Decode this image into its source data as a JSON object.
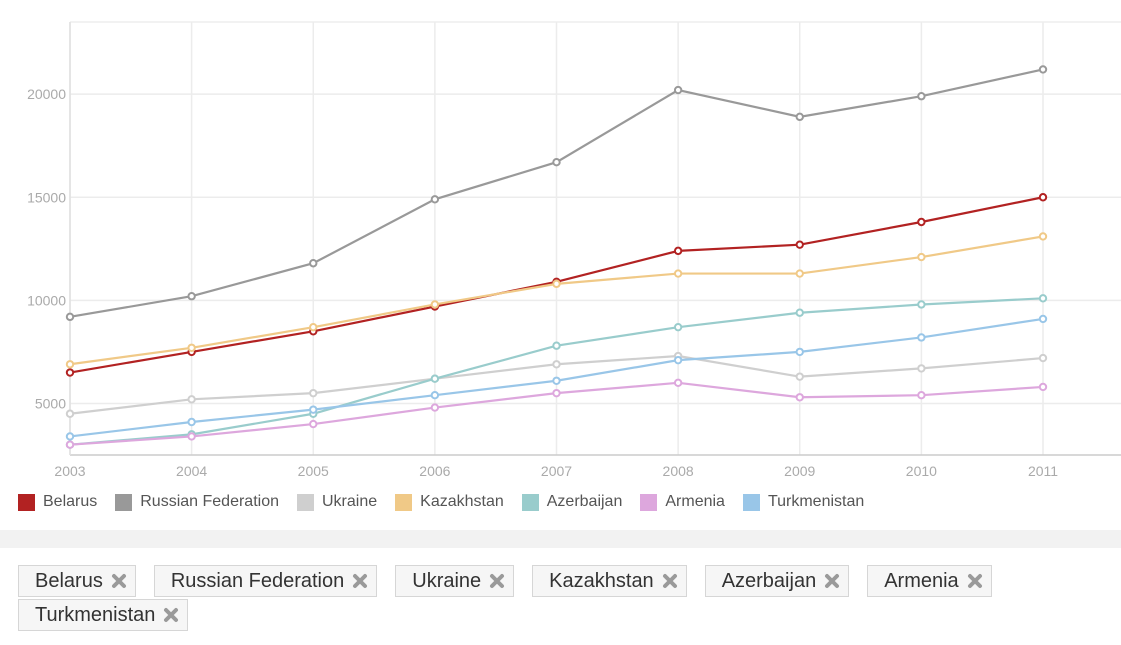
{
  "chart_data": {
    "type": "line",
    "x": [
      "2003",
      "2004",
      "2005",
      "2006",
      "2007",
      "2008",
      "2009",
      "2010",
      "2011"
    ],
    "ylim": [
      2500,
      23500
    ],
    "yticks": [
      "5000",
      "10000",
      "15000",
      "20000"
    ],
    "grid": true,
    "legend_position": "bottom-left",
    "series": [
      {
        "name": "Belarus",
        "color": "#b22222",
        "values": [
          6500,
          7500,
          8500,
          9700,
          10900,
          12400,
          12700,
          13800,
          15000
        ]
      },
      {
        "name": "Russian Federation",
        "color": "#999999",
        "values": [
          9200,
          10200,
          11800,
          14900,
          16700,
          20200,
          18900,
          19900,
          21200
        ]
      },
      {
        "name": "Ukraine",
        "color": "#cfcfcf",
        "values": [
          4500,
          5200,
          5500,
          6200,
          6900,
          7300,
          6300,
          6700,
          7200
        ]
      },
      {
        "name": "Kazakhstan",
        "color": "#f0c987",
        "values": [
          6900,
          7700,
          8700,
          9800,
          10800,
          11300,
          11300,
          12100,
          13100
        ]
      },
      {
        "name": "Azerbaijan",
        "color": "#99cccc",
        "values": [
          3000,
          3500,
          4500,
          6200,
          7800,
          8700,
          9400,
          9800,
          10100
        ]
      },
      {
        "name": "Armenia",
        "color": "#dda7dd",
        "values": [
          3000,
          3400,
          4000,
          4800,
          5500,
          6000,
          5300,
          5400,
          5800
        ]
      },
      {
        "name": "Turkmenistan",
        "color": "#99c6e8",
        "values": [
          3400,
          4100,
          4700,
          5400,
          6100,
          7100,
          7500,
          8200,
          9100
        ]
      }
    ]
  },
  "tags": [
    "Belarus",
    "Russian Federation",
    "Ukraine",
    "Kazakhstan",
    "Azerbaijan",
    "Armenia",
    "Turkmenistan"
  ]
}
